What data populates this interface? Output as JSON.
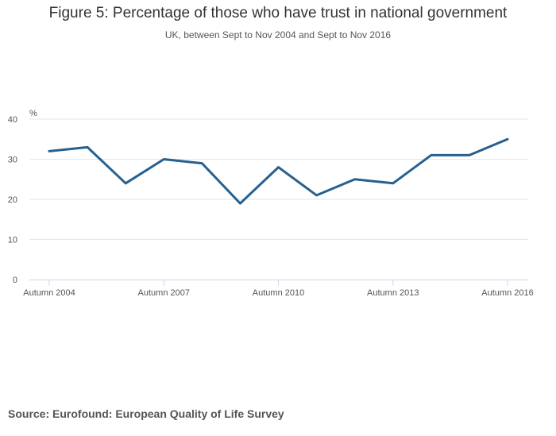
{
  "title": "Figure 5: Percentage of those who have trust in national government",
  "subtitle": "UK, between Sept to Nov 2004 and Sept to Nov 2016",
  "source": "Source: Eurofound: European Quality of Life Survey",
  "colors": {
    "line": "#27608f",
    "grid": "#e6e6e6",
    "axis": "#ccd6eb",
    "text": "#555555"
  },
  "chart_data": {
    "type": "line",
    "title": "Figure 5: Percentage of those who have trust in national government",
    "subtitle": "UK, between Sept to Nov 2004 and Sept to Nov 2016",
    "xlabel": "",
    "ylabel": "%",
    "ylim": [
      0,
      40
    ],
    "yticks": [
      "0",
      "10",
      "20",
      "30",
      "40"
    ],
    "xtick_labels": [
      "Autumn 2004",
      "Autumn 2007",
      "Autumn 2010",
      "Autumn 2013",
      "Autumn 2016"
    ],
    "x_index_of_ticks": [
      0,
      3,
      6,
      9,
      12
    ],
    "grid": true,
    "series": [
      {
        "name": "Trust in national government",
        "values": [
          32,
          33,
          24,
          30,
          29,
          19,
          28,
          21,
          25,
          24,
          31,
          31,
          35
        ]
      }
    ]
  }
}
